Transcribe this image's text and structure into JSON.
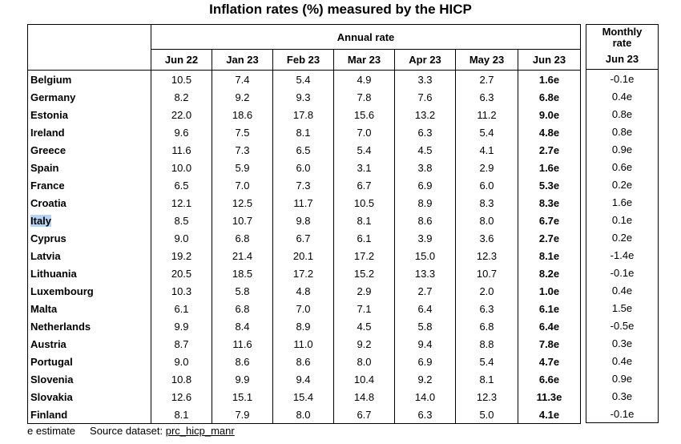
{
  "title": "Inflation rates (%) measured by the HICP",
  "annual_header": "Annual rate",
  "monthly_header_line1": "Monthly",
  "monthly_header_line2": "rate",
  "columns": [
    "Jun 22",
    "Jan 23",
    "Feb 23",
    "Mar 23",
    "Apr 23",
    "May 23",
    "Jun 23"
  ],
  "monthly_column": "Jun 23",
  "rows": [
    {
      "country": "Belgium",
      "values": [
        "10.5",
        "7.4",
        "5.4",
        "4.9",
        "3.3",
        "2.7",
        "1.6e"
      ],
      "monthly": "-0.1e"
    },
    {
      "country": "Germany",
      "values": [
        "8.2",
        "9.2",
        "9.3",
        "7.8",
        "7.6",
        "6.3",
        "6.8e"
      ],
      "monthly": "0.4e"
    },
    {
      "country": "Estonia",
      "values": [
        "22.0",
        "18.6",
        "17.8",
        "15.6",
        "13.2",
        "11.2",
        "9.0e"
      ],
      "monthly": "0.8e"
    },
    {
      "country": "Ireland",
      "values": [
        "9.6",
        "7.5",
        "8.1",
        "7.0",
        "6.3",
        "5.4",
        "4.8e"
      ],
      "monthly": "0.8e"
    },
    {
      "country": "Greece",
      "values": [
        "11.6",
        "7.3",
        "6.5",
        "5.4",
        "4.5",
        "4.1",
        "2.7e"
      ],
      "monthly": "0.9e"
    },
    {
      "country": "Spain",
      "values": [
        "10.0",
        "5.9",
        "6.0",
        "3.1",
        "3.8",
        "2.9",
        "1.6e"
      ],
      "monthly": "0.6e"
    },
    {
      "country": "France",
      "values": [
        "6.5",
        "7.0",
        "7.3",
        "6.7",
        "6.9",
        "6.0",
        "5.3e"
      ],
      "monthly": "0.2e"
    },
    {
      "country": "Croatia",
      "values": [
        "12.1",
        "12.5",
        "11.7",
        "10.5",
        "8.9",
        "8.3",
        "8.3e"
      ],
      "monthly": "1.6e"
    },
    {
      "country": "Italy",
      "values": [
        "8.5",
        "10.7",
        "9.8",
        "8.1",
        "8.6",
        "8.0",
        "6.7e"
      ],
      "monthly": "0.1e",
      "highlight": true
    },
    {
      "country": "Cyprus",
      "values": [
        "9.0",
        "6.8",
        "6.7",
        "6.1",
        "3.9",
        "3.6",
        "2.7e"
      ],
      "monthly": "0.2e"
    },
    {
      "country": "Latvia",
      "values": [
        "19.2",
        "21.4",
        "20.1",
        "17.2",
        "15.0",
        "12.3",
        "8.1e"
      ],
      "monthly": "-1.4e"
    },
    {
      "country": "Lithuania",
      "values": [
        "20.5",
        "18.5",
        "17.2",
        "15.2",
        "13.3",
        "10.7",
        "8.2e"
      ],
      "monthly": "-0.1e"
    },
    {
      "country": "Luxembourg",
      "values": [
        "10.3",
        "5.8",
        "4.8",
        "2.9",
        "2.7",
        "2.0",
        "1.0e"
      ],
      "monthly": "0.4e"
    },
    {
      "country": "Malta",
      "values": [
        "6.1",
        "6.8",
        "7.0",
        "7.1",
        "6.4",
        "6.3",
        "6.1e"
      ],
      "monthly": "1.5e"
    },
    {
      "country": "Netherlands",
      "values": [
        "9.9",
        "8.4",
        "8.9",
        "4.5",
        "5.8",
        "6.8",
        "6.4e"
      ],
      "monthly": "-0.5e"
    },
    {
      "country": "Austria",
      "values": [
        "8.7",
        "11.6",
        "11.0",
        "9.2",
        "9.4",
        "8.8",
        "7.8e"
      ],
      "monthly": "0.3e"
    },
    {
      "country": "Portugal",
      "values": [
        "9.0",
        "8.6",
        "8.6",
        "8.0",
        "6.9",
        "5.4",
        "4.7e"
      ],
      "monthly": "0.4e"
    },
    {
      "country": "Slovenia",
      "values": [
        "10.8",
        "9.9",
        "9.4",
        "10.4",
        "9.2",
        "8.1",
        "6.6e"
      ],
      "monthly": "0.9e"
    },
    {
      "country": "Slovakia",
      "values": [
        "12.6",
        "15.1",
        "15.4",
        "14.8",
        "14.0",
        "12.3",
        "11.3e"
      ],
      "monthly": "0.3e"
    },
    {
      "country": "Finland",
      "values": [
        "8.1",
        "7.9",
        "8.0",
        "6.7",
        "6.3",
        "5.0",
        "4.1e"
      ],
      "monthly": "-0.1e"
    }
  ],
  "footer": {
    "estimate_note": "e estimate",
    "source_label": "Source dataset:",
    "source_link": "prc_hicp_manr"
  },
  "colors": {
    "highlight": "#b7d3f0",
    "border": "#000000"
  }
}
